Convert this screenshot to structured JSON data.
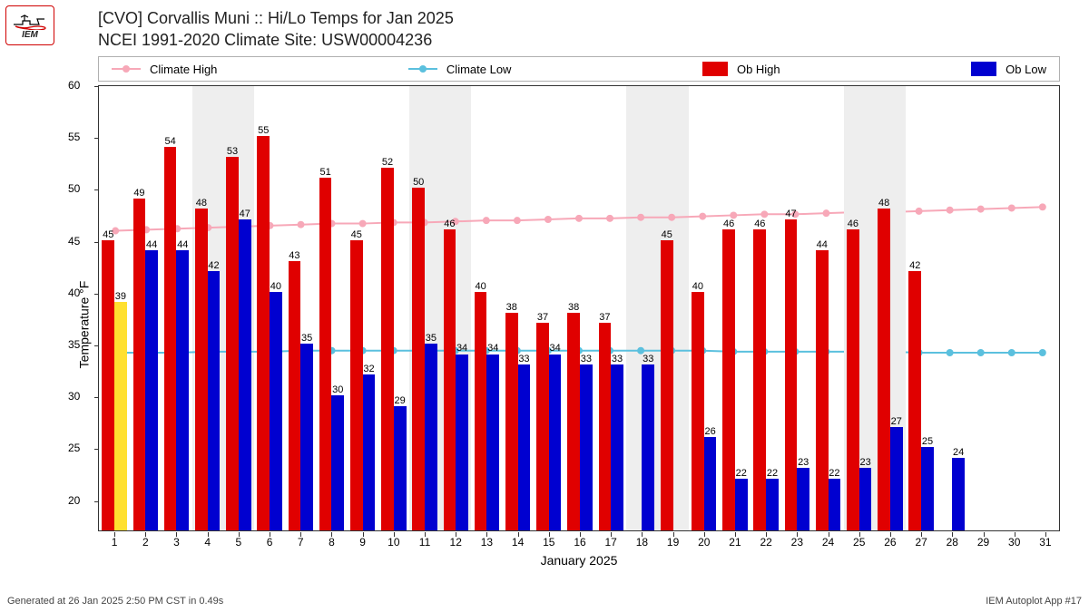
{
  "logo": {
    "label": "IEM"
  },
  "title_line1": "[CVO] Corvallis Muni :: Hi/Lo Temps for Jan 2025",
  "title_line2": "NCEI 1991-2020 Climate Site: USW00004236",
  "legend": {
    "climate_high": "Climate High",
    "climate_low": "Climate Low",
    "ob_high": "Ob High",
    "ob_low": "Ob Low"
  },
  "colors": {
    "climate_high": "#f7a8b8",
    "climate_low": "#5bc0de",
    "ob_high": "#e00000",
    "ob_low": "#0000d0",
    "band": "#eeeeee",
    "border": "#333333",
    "highlight_bar": "#ffe030",
    "background": "#ffffff"
  },
  "axes": {
    "ylabel": "Temperature °F",
    "xlabel": "January 2025",
    "ylim": [
      17,
      60
    ],
    "yticks": [
      20,
      25,
      30,
      35,
      40,
      45,
      50,
      55,
      60
    ],
    "xticks": [
      1,
      2,
      3,
      4,
      5,
      6,
      7,
      8,
      9,
      10,
      11,
      12,
      13,
      14,
      15,
      16,
      17,
      18,
      19,
      20,
      21,
      22,
      23,
      24,
      25,
      26,
      27,
      28,
      29,
      30,
      31
    ],
    "tick_fontsize": 12,
    "label_fontsize": 14
  },
  "chart": {
    "type": "bar+line",
    "n_days": 31,
    "x_offset": 0.5,
    "bar_width": 0.4,
    "data_label_fontsize": 11,
    "weekend_bands": [
      [
        3.5,
        5.5
      ],
      [
        10.5,
        12.5
      ],
      [
        17.5,
        19.5
      ],
      [
        24.5,
        26.5
      ]
    ],
    "days": [
      {
        "d": 1,
        "high": 45,
        "low": 39,
        "clim_high": 46.0,
        "clim_low": 34.2,
        "low_color_override": "#ffe030"
      },
      {
        "d": 2,
        "high": 49,
        "low": 44,
        "clim_high": 46.1,
        "clim_low": 34.2
      },
      {
        "d": 3,
        "high": 54,
        "low": 44,
        "clim_high": 46.2,
        "clim_low": 34.2
      },
      {
        "d": 4,
        "high": 48,
        "low": 42,
        "clim_high": 46.3,
        "clim_low": 34.3
      },
      {
        "d": 5,
        "high": 53,
        "low": 47,
        "clim_high": 46.4,
        "clim_low": 34.3
      },
      {
        "d": 6,
        "high": 55,
        "low": 40,
        "clim_high": 46.5,
        "clim_low": 34.3
      },
      {
        "d": 7,
        "high": 43,
        "low": 35,
        "clim_high": 46.6,
        "clim_low": 34.4
      },
      {
        "d": 8,
        "high": 51,
        "low": 30,
        "clim_high": 46.7,
        "clim_low": 34.4
      },
      {
        "d": 9,
        "high": 45,
        "low": 32,
        "clim_high": 46.7,
        "clim_low": 34.4
      },
      {
        "d": 10,
        "high": 52,
        "low": 29,
        "clim_high": 46.8,
        "clim_low": 34.4
      },
      {
        "d": 11,
        "high": 50,
        "low": 35,
        "clim_high": 46.8,
        "clim_low": 34.4
      },
      {
        "d": 12,
        "high": 46,
        "low": 34,
        "clim_high": 46.9,
        "clim_low": 34.4
      },
      {
        "d": 13,
        "high": 40,
        "low": 34,
        "clim_high": 47.0,
        "clim_low": 34.4
      },
      {
        "d": 14,
        "high": 38,
        "low": 33,
        "clim_high": 47.0,
        "clim_low": 34.4
      },
      {
        "d": 15,
        "high": 37,
        "low": 34,
        "clim_high": 47.1,
        "clim_low": 34.4
      },
      {
        "d": 16,
        "high": 38,
        "low": 33,
        "clim_high": 47.2,
        "clim_low": 34.4
      },
      {
        "d": 17,
        "high": 37,
        "low": 33,
        "clim_high": 47.2,
        "clim_low": 34.4
      },
      {
        "d": 18,
        "high": null,
        "low": 33,
        "clim_high": 47.3,
        "clim_low": 34.4
      },
      {
        "d": 19,
        "high": 45,
        "low": null,
        "clim_high": 47.3,
        "clim_low": 34.4
      },
      {
        "d": 20,
        "high": 40,
        "low": 26,
        "clim_high": 47.4,
        "clim_low": 34.4
      },
      {
        "d": 21,
        "high": 46,
        "low": 22,
        "clim_high": 47.5,
        "clim_low": 34.3
      },
      {
        "d": 22,
        "high": 46,
        "low": 22,
        "clim_high": 47.6,
        "clim_low": 34.3
      },
      {
        "d": 23,
        "high": 47,
        "low": 23,
        "clim_high": 47.6,
        "clim_low": 34.3
      },
      {
        "d": 24,
        "high": 44,
        "low": 22,
        "clim_high": 47.7,
        "clim_low": 34.3
      },
      {
        "d": 25,
        "high": 46,
        "low": 23,
        "clim_high": 47.8,
        "clim_low": 34.3
      },
      {
        "d": 26,
        "high": 48,
        "low": 27,
        "clim_high": 47.8,
        "clim_low": 34.3
      },
      {
        "d": 27,
        "high": 42,
        "low": 25,
        "clim_high": 47.9,
        "clim_low": 34.2
      },
      {
        "d": 28,
        "high": null,
        "low": 24,
        "clim_high": 48.0,
        "clim_low": 34.2
      },
      {
        "d": 29,
        "high": null,
        "low": null,
        "clim_high": 48.1,
        "clim_low": 34.2
      },
      {
        "d": 30,
        "high": null,
        "low": null,
        "clim_high": 48.2,
        "clim_low": 34.2
      },
      {
        "d": 31,
        "high": null,
        "low": null,
        "clim_high": 48.3,
        "clim_low": 34.2
      }
    ]
  },
  "footer": {
    "left": "Generated at 26 Jan 2025 2:50 PM CST in 0.49s",
    "right": "IEM Autoplot App #17"
  }
}
